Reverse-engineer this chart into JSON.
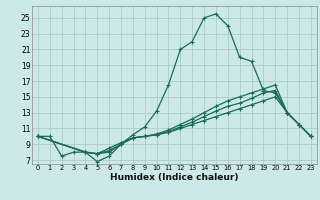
{
  "xlabel": "Humidex (Indice chaleur)",
  "background_color": "#cce8e8",
  "grid_color": "#aacccc",
  "line_color": "#1a6b5a",
  "xlim": [
    -0.5,
    23.5
  ],
  "ylim": [
    6.5,
    26.5
  ],
  "yticks": [
    7,
    9,
    11,
    13,
    15,
    17,
    19,
    21,
    23,
    25
  ],
  "xticks": [
    0,
    1,
    2,
    3,
    4,
    5,
    6,
    7,
    8,
    9,
    10,
    11,
    12,
    13,
    14,
    15,
    16,
    17,
    18,
    19,
    20,
    21,
    22,
    23
  ],
  "series0_x": [
    0,
    1,
    2,
    3,
    4,
    5,
    6,
    7,
    8,
    9,
    10,
    11,
    12,
    13,
    14,
    15,
    16,
    17,
    18,
    19,
    20,
    21,
    22,
    23
  ],
  "series0_y": [
    10,
    10,
    7.5,
    8,
    8,
    6.8,
    7.5,
    9,
    10.2,
    11.2,
    13.2,
    16.5,
    21,
    22,
    25,
    25.5,
    24,
    20,
    19.5,
    15.8,
    15.5,
    13,
    11.5,
    10
  ],
  "series1_x": [
    0,
    4,
    5,
    6,
    7,
    8,
    9,
    10,
    11,
    12,
    13,
    14,
    15,
    16,
    17,
    18,
    19,
    20,
    21,
    22,
    23
  ],
  "series1_y": [
    10,
    8,
    7.8,
    8,
    9,
    9.8,
    10,
    10.2,
    10.5,
    11,
    11.5,
    12,
    12.5,
    13,
    13.5,
    14,
    14.5,
    15,
    13,
    11.5,
    10
  ],
  "series2_x": [
    0,
    4,
    5,
    6,
    7,
    8,
    9,
    10,
    11,
    12,
    13,
    14,
    15,
    16,
    17,
    18,
    19,
    20,
    21,
    22,
    23
  ],
  "series2_y": [
    10,
    8,
    7.8,
    8.2,
    9,
    9.8,
    10,
    10.2,
    10.6,
    11.2,
    11.8,
    12.5,
    13.2,
    13.8,
    14.2,
    14.8,
    15.5,
    15.8,
    13,
    11.5,
    10
  ],
  "series3_x": [
    0,
    4,
    5,
    6,
    7,
    8,
    9,
    10,
    11,
    12,
    13,
    14,
    15,
    16,
    17,
    18,
    19,
    20,
    21,
    22,
    23
  ],
  "series3_y": [
    10,
    8,
    7.8,
    8.5,
    9.2,
    9.8,
    10,
    10.3,
    10.8,
    11.5,
    12.2,
    13,
    13.8,
    14.5,
    15,
    15.5,
    16,
    16.5,
    13,
    11.5,
    10
  ]
}
